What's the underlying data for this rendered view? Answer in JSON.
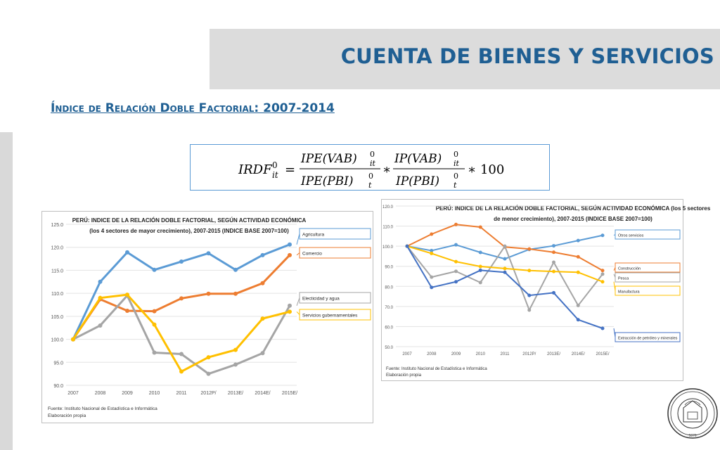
{
  "header": {
    "title": "CUENTA DE BIENES Y SERVICIOS"
  },
  "subtitle": "Índice de Relación Doble Factorial: 2007-2014",
  "formula": {
    "lhs": "IRDF",
    "lhs_sup": "0",
    "lhs_sub": "it",
    "frac1_num": "IPE(VAB)",
    "frac1_num_sup": "0",
    "frac1_num_sub": "it",
    "frac1_den": "IPE(PBI)",
    "frac1_den_sup": "0",
    "frac1_den_sub": "t",
    "frac2_num": "IP(VAB)",
    "frac2_num_sup": "0",
    "frac2_num_sub": "it",
    "frac2_den": "IP(PBI)",
    "frac2_den_sup": "0",
    "frac2_den_sub": "t",
    "tail": "∗ 100"
  },
  "chart_data": [
    {
      "type": "line",
      "title_line1": "PERÚ: INDICE DE LA RELACIÓN DOBLE FACTORIAL, SEGÚN ACTIVIDAD ECONÓMICA",
      "title_line2": "(los 4 sectores de mayor crecimiento), 2007-2015 (INDICE BASE 2007=100)",
      "categories": [
        "2007",
        "2008",
        "2009",
        "2010",
        "2011",
        "2012P/",
        "2013E/",
        "2014E/",
        "2015E/"
      ],
      "ylim": [
        90,
        125
      ],
      "yticks": [
        "90.0",
        "95.0",
        "100.0",
        "105.0",
        "110.0",
        "115.0",
        "120.0",
        "125.0"
      ],
      "grid": true,
      "source_line1": "Fuente: Instituto Nacional de Estadística e Informática",
      "source_line2": "Elaboración propia",
      "series": [
        {
          "name": "Agricultura",
          "color": "#5b9bd5",
          "values": [
            100.0,
            112.5,
            118.9,
            115.1,
            116.9,
            118.7,
            115.1,
            118.3,
            120.6
          ]
        },
        {
          "name": "Comercio",
          "color": "#ed7d31",
          "values": [
            100.0,
            108.7,
            106.2,
            106.1,
            108.9,
            109.9,
            109.9,
            112.2,
            118.3
          ]
        },
        {
          "name": "Electicidad y agua",
          "color": "#a5a5a5",
          "values": [
            100.0,
            103.0,
            109.5,
            97.1,
            96.8,
            92.5,
            94.5,
            97.0,
            107.3
          ]
        },
        {
          "name": "Servicios gubernamentales",
          "color": "#ffc000",
          "values": [
            100.0,
            109.0,
            109.7,
            103.2,
            93.0,
            96.1,
            97.7,
            104.5,
            106.0
          ]
        }
      ]
    },
    {
      "type": "line",
      "title_line1": "PERÚ: INDICE DE LA RELACIÓN DOBLE FACTORIAL, SEGÚN ACTIVIDAD ECONÓMICA (los 5 sectores",
      "title_line2": "de menor crecimiento), 2007-2015 (INDICE BASE 2007=100)",
      "categories": [
        "2007",
        "2008",
        "2009",
        "2010",
        "2011",
        "2012P/",
        "2013E/",
        "2014E/",
        "2015E/"
      ],
      "ylim": [
        50,
        120
      ],
      "yticks": [
        "50.0",
        "60.0",
        "70.0",
        "80.0",
        "90.0",
        "100.0",
        "110.0",
        "120.0"
      ],
      "grid": true,
      "source_line1": "Fuente: Instituto Nacional de Estadística e Informática",
      "source_line2": "Elaboración propia",
      "series": [
        {
          "name": "Otros servicios",
          "color": "#5b9bd5",
          "values": [
            100.0,
            97.8,
            100.7,
            96.9,
            93.7,
            98.4,
            100.2,
            102.8,
            105.4
          ]
        },
        {
          "name": "Construcción",
          "color": "#ed7d31",
          "values": [
            100.0,
            106.0,
            110.8,
            109.5,
            99.6,
            98.6,
            97.0,
            94.7,
            87.9
          ]
        },
        {
          "name": "Pesca",
          "color": "#a5a5a5",
          "values": [
            100.0,
            84.6,
            87.5,
            81.9,
            100.0,
            68.2,
            92.0,
            70.5,
            86.1
          ]
        },
        {
          "name": "Manufactura",
          "color": "#ffc000",
          "values": [
            100.0,
            96.4,
            92.3,
            89.9,
            88.9,
            87.9,
            87.4,
            87.0,
            82.3
          ]
        },
        {
          "name": "Extracción de petróleo y minerales",
          "color": "#4472c4",
          "values": [
            100.0,
            79.5,
            82.3,
            88.0,
            87.0,
            75.5,
            76.8,
            63.4,
            59.1
          ]
        }
      ]
    }
  ]
}
